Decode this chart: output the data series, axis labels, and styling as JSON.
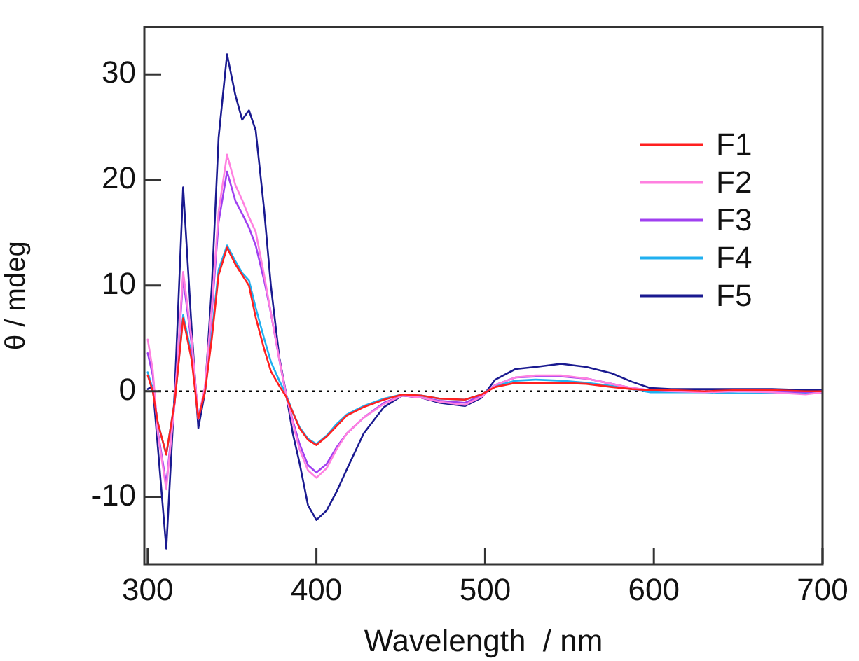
{
  "chart_data": {
    "type": "line",
    "xlabel": "Wavelength  / nm",
    "ylabel": "θ / mdeg",
    "x": [
      300,
      303,
      306,
      311,
      316,
      321,
      326,
      330,
      334,
      338,
      342,
      347,
      352,
      356,
      360,
      364,
      369,
      373,
      378,
      382,
      386,
      390,
      395,
      400,
      406,
      412,
      418,
      428,
      440,
      451,
      462,
      473,
      488,
      498,
      506,
      518,
      530,
      545,
      560,
      575,
      587,
      598,
      610,
      630,
      650,
      670,
      690,
      700
    ],
    "series": [
      {
        "name": "F1",
        "color": "#ff2020",
        "values": [
          1.5,
          0,
          -3,
          -6,
          -1,
          6.9,
          3,
          -2.6,
          0,
          5,
          11,
          13.6,
          12,
          11,
          10,
          7,
          4,
          1.9,
          0.5,
          -0.5,
          -2,
          -3.5,
          -4.6,
          -5.1,
          -4.3,
          -3.3,
          -2.3,
          -1.5,
          -0.8,
          -0.3,
          -0.4,
          -0.7,
          -0.8,
          -0.3,
          0.4,
          0.8,
          0.8,
          0.8,
          0.7,
          0.4,
          0.2,
          0.1,
          0.1,
          0,
          0.1,
          0.1,
          0,
          0
        ]
      },
      {
        "name": "F2",
        "color": "#ff80e0",
        "values": [
          4.9,
          2,
          -4,
          -9.3,
          -1,
          11.3,
          5,
          -2.6,
          0.5,
          8,
          17,
          22.4,
          19.5,
          18.1,
          16.5,
          15.1,
          11,
          7.4,
          3,
          -0.3,
          -3,
          -5.5,
          -7.5,
          -8.2,
          -7.3,
          -5.5,
          -4,
          -2.5,
          -1.2,
          -0.4,
          -0.6,
          -1,
          -1.3,
          -0.5,
          0.6,
          1.3,
          1.5,
          1.5,
          1.2,
          0.7,
          0.3,
          0.1,
          0,
          -0.1,
          0,
          -0.1,
          -0.3,
          -0.1
        ]
      },
      {
        "name": "F3",
        "color": "#a040f0",
        "values": [
          3.6,
          1.5,
          -3.8,
          -8.8,
          -1,
          10.7,
          4.5,
          -2.6,
          0.3,
          7.5,
          16,
          20.8,
          18,
          16.8,
          15.5,
          13.8,
          10.5,
          7.4,
          3,
          -0.3,
          -2.8,
          -5,
          -7,
          -7.7,
          -6.9,
          -5.3,
          -4,
          -2.5,
          -1.1,
          -0.4,
          -0.6,
          -0.9,
          -1.1,
          -0.4,
          0.6,
          1.3,
          1.4,
          1.4,
          1.2,
          0.7,
          0.3,
          0.1,
          0,
          0,
          0,
          0,
          -0.1,
          0
        ]
      },
      {
        "name": "F4",
        "color": "#20b0f0",
        "values": [
          1.8,
          0.2,
          -3,
          -6,
          -1,
          7.2,
          3.5,
          -2.4,
          0,
          5.5,
          11.5,
          13.8,
          12.3,
          11.2,
          10.5,
          7.9,
          5,
          2.8,
          1,
          -0.3,
          -2,
          -3.4,
          -4.5,
          -5,
          -4.2,
          -3.1,
          -2.2,
          -1.4,
          -0.7,
          -0.3,
          -0.4,
          -0.7,
          -0.8,
          -0.3,
          0.5,
          1,
          1.1,
          1,
          0.8,
          0.5,
          0.2,
          -0.1,
          -0.1,
          -0.1,
          -0.2,
          -0.2,
          -0.2,
          -0.2
        ]
      },
      {
        "name": "F5",
        "color": "#1a1a90",
        "values": [
          0.2,
          0.5,
          -5.3,
          -14.9,
          0,
          19.3,
          6,
          -3.5,
          0,
          10,
          24,
          31.9,
          28,
          25.7,
          26.6,
          24.7,
          17.2,
          10,
          3.2,
          -0.2,
          -4,
          -6.8,
          -10.8,
          -12.2,
          -11.3,
          -9.5,
          -7.4,
          -4,
          -1.5,
          -0.4,
          -0.6,
          -1.1,
          -1.4,
          -0.6,
          1.1,
          2.1,
          2.3,
          2.6,
          2.3,
          1.7,
          0.9,
          0.3,
          0.2,
          0.2,
          0.2,
          0.2,
          0.1,
          0.1
        ]
      }
    ],
    "xlim": [
      298,
      700
    ],
    "xticks": [
      300,
      400,
      500,
      600,
      700
    ],
    "ylim": [
      -16.4,
      34.5
    ],
    "yticks": [
      -10,
      0,
      10,
      20,
      30
    ],
    "ref_lines": [
      {
        "axis": "y",
        "value": 0,
        "color": "#000000",
        "line_style": "dotted"
      }
    ],
    "grid": false,
    "legend": "top right",
    "marker": "none",
    "line_style": "solid"
  }
}
